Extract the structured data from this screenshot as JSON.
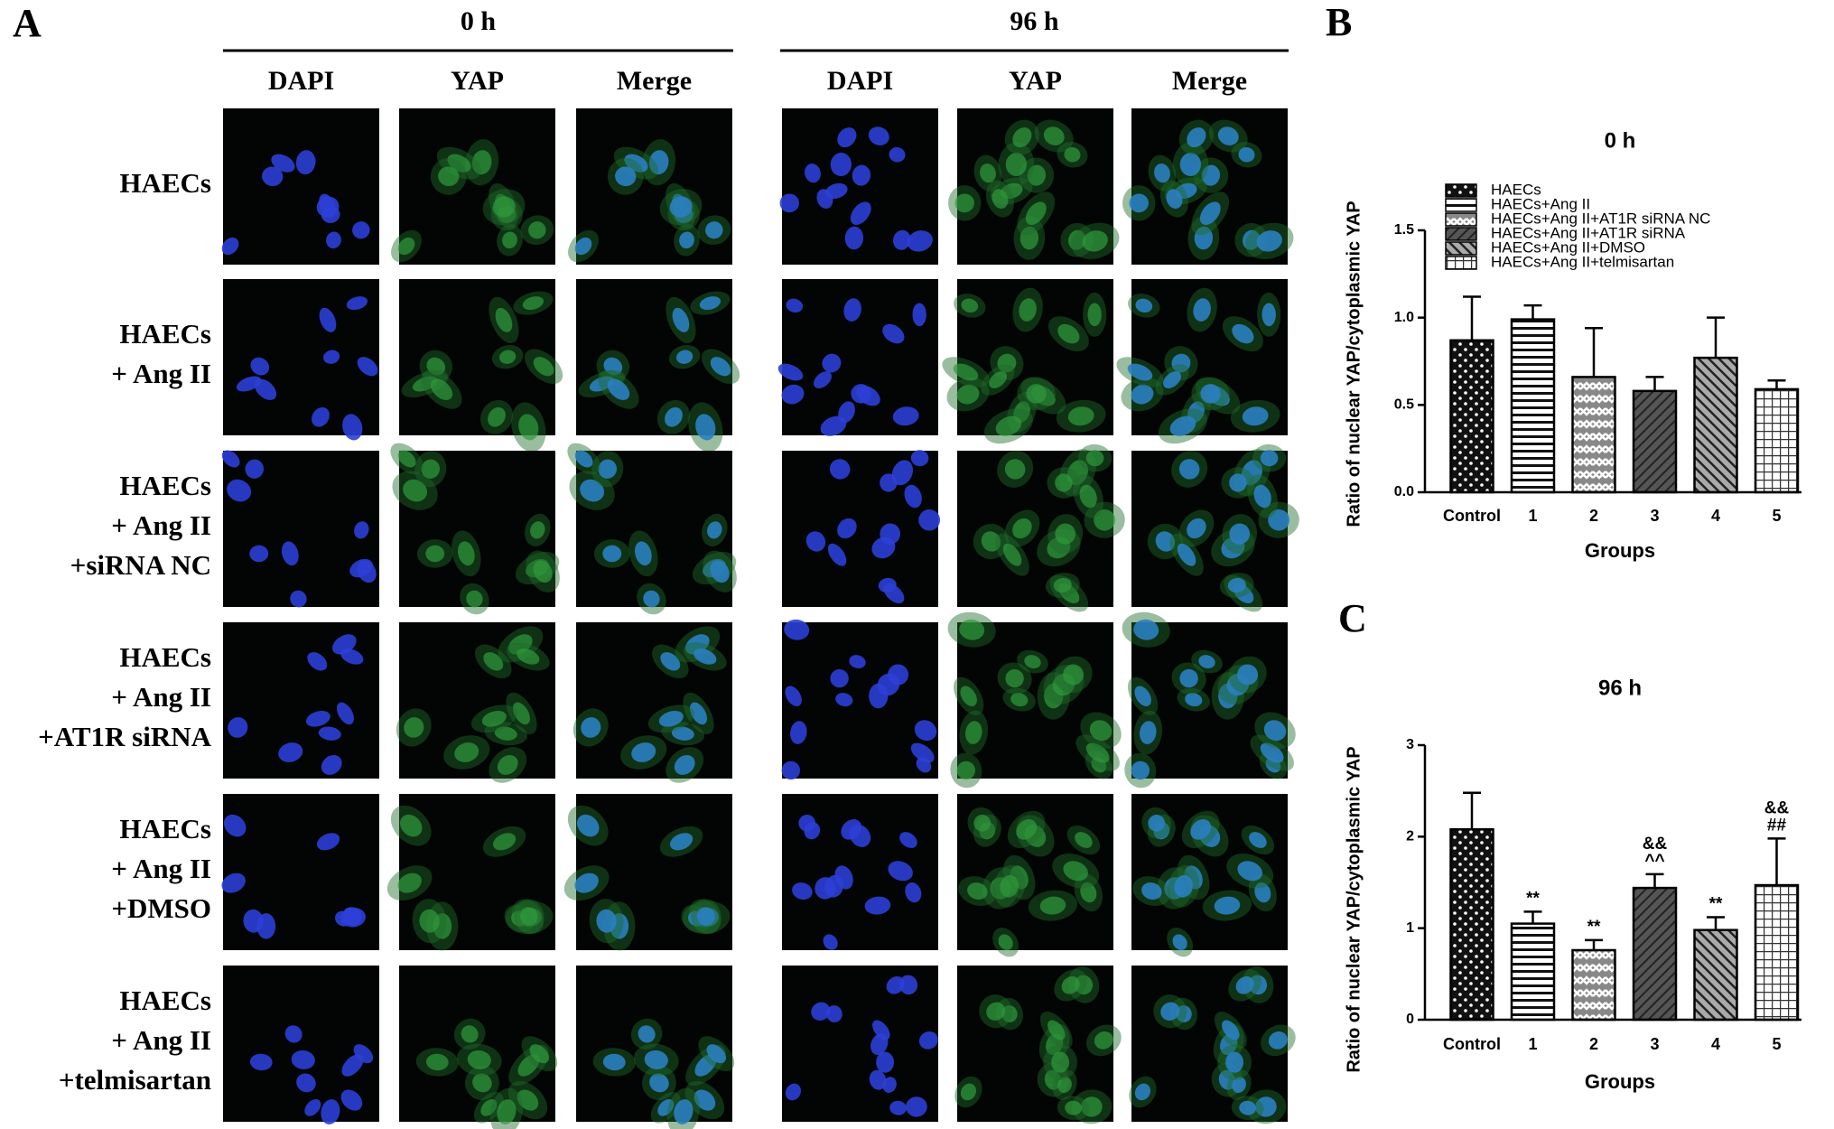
{
  "panel_a": {
    "label": "A",
    "groups": [
      {
        "label": "0 h",
        "columns": [
          "DAPI",
          "YAP",
          "Merge"
        ]
      },
      {
        "label": "96 h",
        "columns": [
          "DAPI",
          "YAP",
          "Merge"
        ]
      }
    ],
    "rows": [
      [
        "HAECs"
      ],
      [
        "HAECs",
        "+ Ang II"
      ],
      [
        "HAECs",
        "+ Ang II",
        "+siRNA NC"
      ],
      [
        "HAECs",
        "+ Ang II",
        "+AT1R siRNA"
      ],
      [
        "HAECs",
        "+ Ang II",
        "+DMSO"
      ],
      [
        "HAECs",
        "+ Ang II",
        "+telmisartan"
      ]
    ]
  },
  "chart_data": [
    {
      "type": "bar",
      "label": "B",
      "title": "0 h",
      "x_label": "Groups",
      "y_label": "Ratio of nuclear YAP/cytoplasmic YAP",
      "categories": [
        "Control",
        "1",
        "2",
        "3",
        "4",
        "5"
      ],
      "values": [
        0.87,
        0.99,
        0.66,
        0.58,
        0.77,
        0.59
      ],
      "errors": [
        0.25,
        0.08,
        0.28,
        0.08,
        0.23,
        0.05
      ],
      "ylim": [
        0,
        1.5
      ],
      "yticks": [
        {
          "value": 0,
          "label": "0.0"
        },
        0.5,
        {
          "value": 1,
          "label": "1.0"
        },
        1.5
      ],
      "legend": [
        "HAECs",
        "HAECs+Ang II",
        "HAECs+Ang II+AT1R siRNA NC",
        "HAECs+Ang II+AT1R siRNA",
        "HAECs+Ang II+DMSO",
        "HAECs+Ang II+telmisartan"
      ],
      "patterns": [
        "dots",
        "hlines",
        "zigzag",
        "diag",
        "diagrev",
        "grid"
      ]
    },
    {
      "type": "bar",
      "label": "C",
      "title": "96 h",
      "x_label": "Groups",
      "y_label": "Ratio of nuclear YAP/cytoplasmic YAP",
      "categories": [
        "Control",
        "1",
        "2",
        "3",
        "4",
        "5"
      ],
      "values": [
        2.08,
        1.05,
        0.76,
        1.44,
        0.98,
        1.47
      ],
      "errors": [
        0.4,
        0.13,
        0.11,
        0.15,
        0.14,
        0.51
      ],
      "annotations": [
        null,
        [
          "**"
        ],
        [
          "**"
        ],
        [
          "&&",
          "^^"
        ],
        [
          "**"
        ],
        [
          "&&",
          "##"
        ]
      ],
      "ylim": [
        0,
        3
      ],
      "yticks": [
        0,
        1,
        2,
        3
      ],
      "patterns": [
        "dots",
        "hlines",
        "zigzag",
        "diag",
        "diagrev",
        "grid"
      ]
    }
  ]
}
